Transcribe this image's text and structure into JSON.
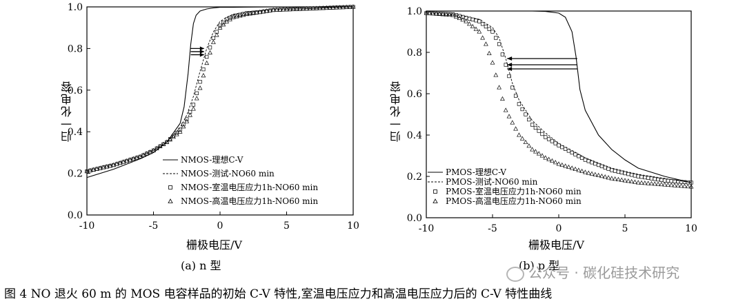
{
  "chart_data": [
    {
      "panel": "a",
      "type": "line",
      "subcaption": "(a) n 型",
      "xlabel": "栅极电压/V",
      "ylabel": "归一化电容",
      "xlim": [
        -10,
        10
      ],
      "ylim": [
        0.0,
        1.0
      ],
      "xticks": [
        "-10",
        "-5",
        "0",
        "5",
        "10"
      ],
      "yticks": [
        "0.0",
        "0.2",
        "0.4",
        "0.6",
        "0.8",
        "1.0"
      ],
      "legend_position": "bottom-right",
      "series": [
        {
          "name": "NMOS-理想C-V",
          "style": "solid",
          "x": [
            -10,
            -8,
            -6,
            -5,
            -4,
            -3,
            -2.7,
            -2.4,
            -2.2,
            -2.0,
            -1.8,
            -1.5,
            -1,
            -0.5,
            0,
            1,
            2,
            4,
            6,
            8,
            10
          ],
          "y": [
            0.18,
            0.22,
            0.27,
            0.3,
            0.35,
            0.44,
            0.52,
            0.68,
            0.82,
            0.92,
            0.96,
            0.98,
            0.99,
            0.995,
            0.998,
            0.998,
            0.999,
            1.0,
            1.0,
            1.0,
            1.0
          ]
        },
        {
          "name": "NMOS-测试-NO60 min",
          "style": "dashed",
          "x": [
            -10,
            -8,
            -6,
            -5,
            -4,
            -3,
            -2.5,
            -2,
            -1.5,
            -1,
            -0.5,
            0,
            0.5,
            1,
            2,
            3,
            4,
            6,
            8,
            10
          ],
          "y": [
            0.21,
            0.24,
            0.28,
            0.31,
            0.35,
            0.42,
            0.48,
            0.57,
            0.69,
            0.8,
            0.88,
            0.93,
            0.95,
            0.965,
            0.975,
            0.98,
            0.985,
            0.99,
            0.995,
            1.0
          ]
        },
        {
          "name": "NMOS-室温电压应力1h-NO60 min",
          "style": "square",
          "x": [
            -10,
            -8,
            -6,
            -5,
            -4,
            -3,
            -2.5,
            -2,
            -1.5,
            -1,
            -0.5,
            0,
            0.5,
            1,
            2,
            3,
            4,
            6,
            8,
            10
          ],
          "y": [
            0.21,
            0.24,
            0.28,
            0.31,
            0.35,
            0.41,
            0.46,
            0.53,
            0.64,
            0.76,
            0.85,
            0.91,
            0.94,
            0.955,
            0.97,
            0.975,
            0.985,
            0.99,
            0.995,
            1.0
          ]
        },
        {
          "name": "NMOS-高温电压应力1h-NO60 min",
          "style": "triangle",
          "x": [
            -10,
            -8,
            -6,
            -5,
            -4,
            -3,
            -2.5,
            -2,
            -1.5,
            -1,
            -0.5,
            0,
            0.5,
            1,
            2,
            3,
            4,
            6,
            8,
            10
          ],
          "y": [
            0.21,
            0.24,
            0.28,
            0.31,
            0.35,
            0.4,
            0.45,
            0.51,
            0.61,
            0.73,
            0.83,
            0.9,
            0.93,
            0.95,
            0.965,
            0.975,
            0.985,
            0.99,
            0.995,
            1.0
          ]
        }
      ]
    },
    {
      "panel": "b",
      "type": "line",
      "subcaption": "(b) p 型",
      "xlabel": "栅极电压/V",
      "ylabel": "归一化电容",
      "xlim": [
        -10,
        10
      ],
      "ylim": [
        0.0,
        1.0
      ],
      "xticks": [
        "-10",
        "-5",
        "0",
        "5",
        "10"
      ],
      "yticks": [
        "0.0",
        "0.2",
        "0.4",
        "0.6",
        "0.8",
        "1.0"
      ],
      "legend_position": "bottom-left",
      "series": [
        {
          "name": "PMOS-理想C-V",
          "style": "solid",
          "x": [
            -10,
            -6,
            -4,
            -2,
            -1,
            0,
            0.5,
            1,
            1.3,
            1.6,
            2,
            3,
            4,
            5,
            6,
            8,
            10
          ],
          "y": [
            1.0,
            1.0,
            1.0,
            1.0,
            0.998,
            0.99,
            0.97,
            0.9,
            0.78,
            0.62,
            0.52,
            0.4,
            0.33,
            0.28,
            0.24,
            0.2,
            0.17
          ]
        },
        {
          "name": "PMOS-测试-NO60 min",
          "style": "dashed",
          "x": [
            -10,
            -8,
            -6,
            -5,
            -4.5,
            -4,
            -3.5,
            -3,
            -2,
            -1,
            0,
            2,
            4,
            6,
            8,
            10
          ],
          "y": [
            0.99,
            0.985,
            0.96,
            0.92,
            0.87,
            0.77,
            0.65,
            0.57,
            0.47,
            0.41,
            0.36,
            0.29,
            0.24,
            0.21,
            0.19,
            0.17
          ]
        },
        {
          "name": "PMOS-室温电压应力1h-NO60 min",
          "style": "square",
          "x": [
            -10,
            -8,
            -6,
            -5,
            -4.5,
            -4,
            -3.5,
            -3,
            -2,
            -1,
            0,
            2,
            4,
            6,
            8,
            10
          ],
          "y": [
            0.99,
            0.985,
            0.95,
            0.9,
            0.84,
            0.74,
            0.63,
            0.55,
            0.45,
            0.39,
            0.35,
            0.28,
            0.23,
            0.2,
            0.18,
            0.17
          ]
        },
        {
          "name": "PMOS-高温电压应力1h-NO60 min",
          "style": "triangle",
          "x": [
            -10,
            -8,
            -7,
            -6,
            -5.5,
            -5,
            -4.5,
            -4,
            -3,
            -2,
            -1,
            0,
            2,
            4,
            6,
            8,
            10
          ],
          "y": [
            0.99,
            0.98,
            0.95,
            0.9,
            0.84,
            0.75,
            0.63,
            0.52,
            0.4,
            0.33,
            0.29,
            0.26,
            0.22,
            0.19,
            0.17,
            0.16,
            0.15
          ]
        }
      ]
    }
  ],
  "caption": "图 4   NO 退火 60 m 的 MOS 电容样品的初始 C-V 特性,室温电压应力和高温电压应力后的 C-V 特性曲线",
  "watermark": "公众号 · 碳化硅技术研究"
}
